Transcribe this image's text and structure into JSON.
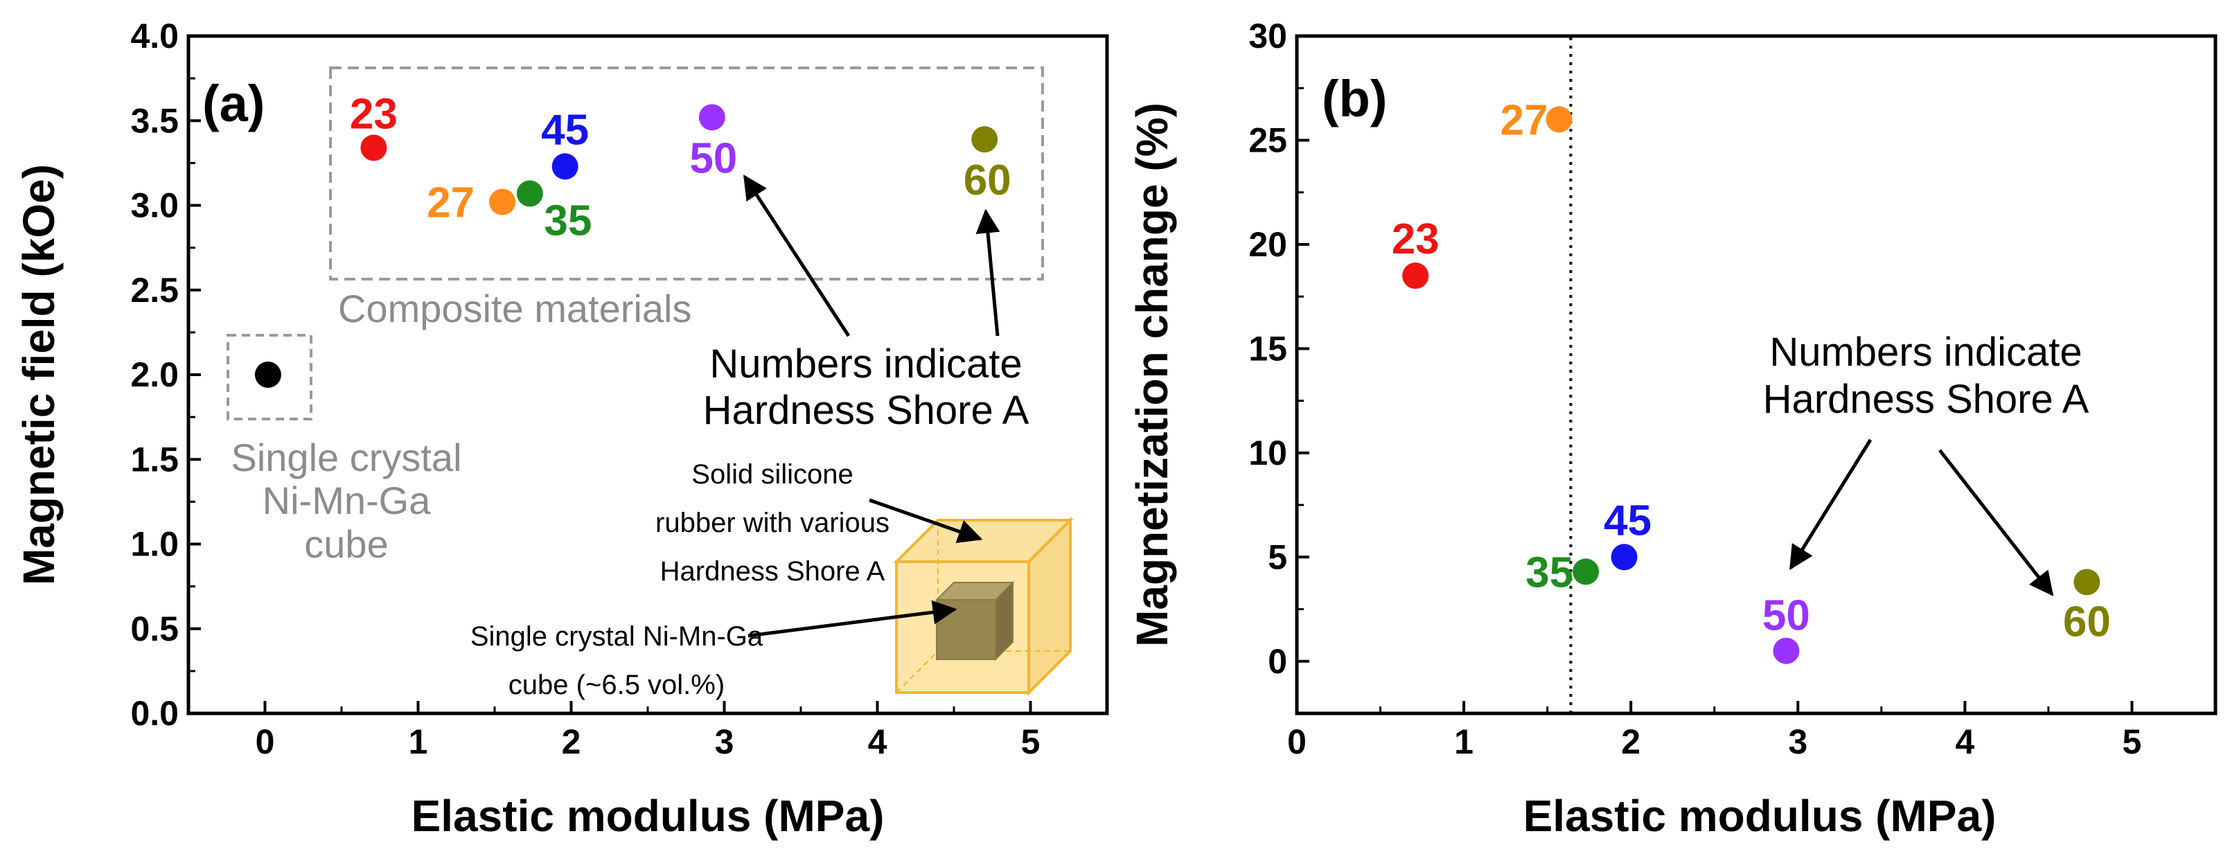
{
  "chart_data": [
    {
      "type": "scatter",
      "panel_label": "(a)",
      "xlabel": "Elastic modulus (MPa)",
      "ylabel": "Magnetic field (kOe)",
      "xlim": [
        -0.5,
        5.5
      ],
      "ylim": [
        0.0,
        4.0
      ],
      "xticks": [
        "0",
        "1",
        "2",
        "3",
        "4",
        "5"
      ],
      "yticks": [
        "0.0",
        "0.5",
        "1.0",
        "1.5",
        "2.0",
        "2.5",
        "3.0",
        "3.5",
        "4.0"
      ],
      "points": [
        {
          "label": "23",
          "x": 0.71,
          "y": 3.34,
          "color": "#f01414"
        },
        {
          "label": "27",
          "x": 1.55,
          "y": 3.02,
          "color": "#ff8c1a"
        },
        {
          "label": "35",
          "x": 1.73,
          "y": 3.07,
          "color": "#1e8c1e"
        },
        {
          "label": "45",
          "x": 1.96,
          "y": 3.23,
          "color": "#1414f0"
        },
        {
          "label": "50",
          "x": 2.92,
          "y": 3.52,
          "color": "#9933ff"
        },
        {
          "label": "60",
          "x": 4.7,
          "y": 3.39,
          "color": "#808000"
        },
        {
          "label": "",
          "x": 0.02,
          "y": 2.0,
          "color": "#000000"
        }
      ],
      "annotations": {
        "composite": "Composite materials",
        "single_crystal": [
          "Single crystal",
          "Ni-Mn-Ga",
          "cube"
        ],
        "numbers_note": [
          "Numbers indicate",
          "Hardness Shore A"
        ],
        "rubber_note": [
          "Solid silicone",
          "rubber with various",
          "Hardness Shore A"
        ],
        "cube_note": [
          "Single crystal Ni-Mn-Ga",
          "cube (~6.5 vol.%)"
        ]
      }
    },
    {
      "type": "scatter",
      "panel_label": "(b)",
      "xlabel": "Elastic modulus (MPa)",
      "ylabel": "Magnetization change (%)",
      "xlim": [
        0,
        5.5
      ],
      "ylim": [
        -2.5,
        30
      ],
      "xticks": [
        "0",
        "1",
        "2",
        "3",
        "4",
        "5"
      ],
      "yticks": [
        "0",
        "5",
        "10",
        "15",
        "20",
        "25",
        "30"
      ],
      "vline_x": 1.64,
      "points": [
        {
          "label": "23",
          "x": 0.71,
          "y": 18.5,
          "color": "#f01414"
        },
        {
          "label": "27",
          "x": 1.57,
          "y": 26.0,
          "color": "#ff8c1a"
        },
        {
          "label": "35",
          "x": 1.73,
          "y": 4.3,
          "color": "#1e8c1e"
        },
        {
          "label": "45",
          "x": 1.96,
          "y": 5.0,
          "color": "#1414f0"
        },
        {
          "label": "50",
          "x": 2.93,
          "y": 0.5,
          "color": "#9933ff"
        },
        {
          "label": "60",
          "x": 4.73,
          "y": 3.8,
          "color": "#808000"
        }
      ],
      "annotations": {
        "numbers_note": [
          "Numbers indicate",
          "Hardness Shore A"
        ]
      }
    }
  ]
}
